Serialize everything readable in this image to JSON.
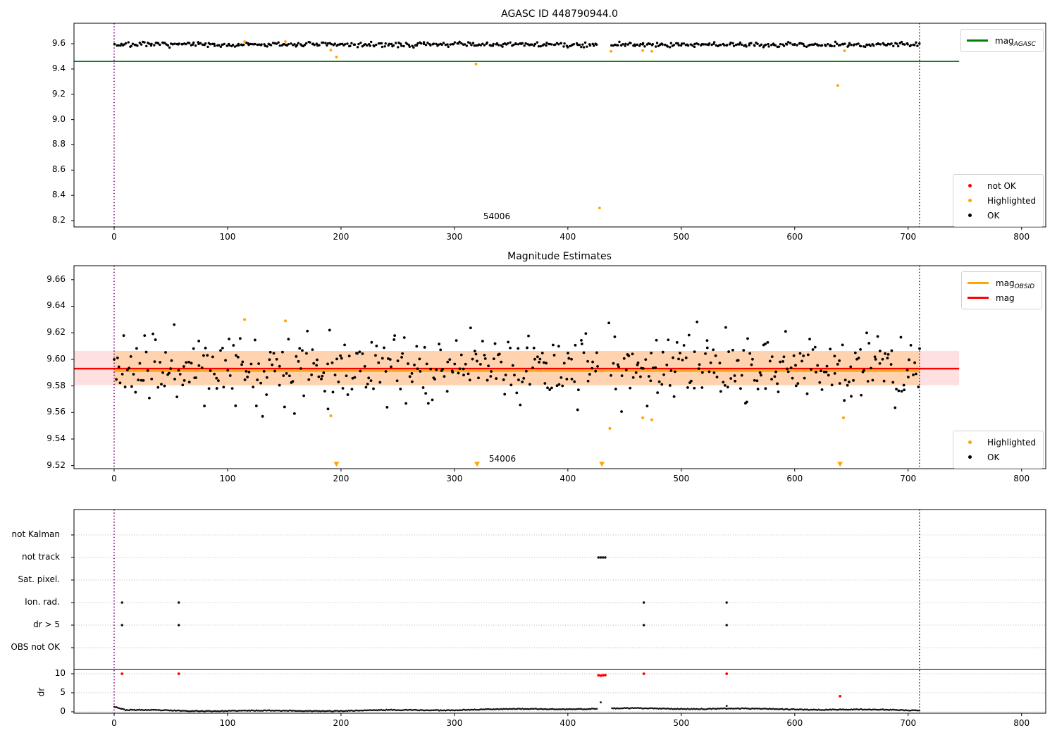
{
  "figure": {
    "background": "#ffffff"
  },
  "colors": {
    "ok": "#000000",
    "not_ok": "#ff0000",
    "highlighted": "#ffa500",
    "mag_agasc_line": "#008000",
    "mag_line": "#ff0000",
    "mag_obsid_line": "#ffa500",
    "obs_window_line": "#800080",
    "grid": "#b5b5b5",
    "mag_band_fill": "rgba(255,0,0,0.12)",
    "obsid_band_fill": "rgba(255,165,0,0.22)"
  },
  "chart_data": [
    {
      "type": "scatter",
      "title": "AGASC ID 448790944.0",
      "xlim": [
        -35.4,
        821.3
      ],
      "ylim": [
        8.15,
        9.762
      ],
      "xticks": [
        0,
        100,
        200,
        300,
        400,
        500,
        600,
        700,
        800
      ],
      "yticks": [
        8.2,
        8.4,
        8.6,
        8.8,
        9.0,
        9.2,
        9.4,
        9.6
      ],
      "mag_agasc_line": {
        "y": 9.46,
        "x_start": -35.4,
        "x_end": 745
      },
      "obs_window_vlines": [
        0,
        710
      ],
      "annotation": {
        "text": "54006",
        "x": 337,
        "y": 8.26
      },
      "ok_scatter": {
        "seed": 7,
        "n": 500,
        "x_start": 1,
        "x_end": 710,
        "gap": [
          427,
          438
        ],
        "y_mean": 9.593,
        "y_spread": 0.009,
        "y_min": 9.556,
        "y_max": 9.632
      },
      "highlighted_points": [
        [
          115,
          9.617
        ],
        [
          151,
          9.617
        ],
        [
          191,
          9.55
        ],
        [
          196,
          9.495
        ],
        [
          319,
          9.44
        ],
        [
          428,
          8.3
        ],
        [
          438,
          9.54
        ],
        [
          466,
          9.546
        ],
        [
          474,
          9.54
        ],
        [
          638,
          9.27
        ],
        [
          644,
          9.544
        ]
      ],
      "not_ok_points": [],
      "legend_lines": [
        {
          "label": "mag",
          "sub": "AGASC"
        }
      ],
      "legend_markers": [
        {
          "label": "not OK"
        },
        {
          "label": "Highlighted"
        },
        {
          "label": "OK"
        }
      ]
    },
    {
      "type": "scatter",
      "title": "Magnitude Estimates",
      "xlim": [
        -35.4,
        821.3
      ],
      "ylim": [
        9.5177,
        9.6705
      ],
      "xticks": [
        0,
        100,
        200,
        300,
        400,
        500,
        600,
        700,
        800
      ],
      "yticks": [
        9.52,
        9.54,
        9.56,
        9.58,
        9.6,
        9.62,
        9.64,
        9.66
      ],
      "mag_line": {
        "y": 9.593,
        "x_start": -35.4,
        "x_end": 745
      },
      "mag_band": {
        "y0": 9.5805,
        "y1": 9.6063,
        "x_start": -35.4,
        "x_end": 745
      },
      "mag_obsid_line": {
        "y": 9.5912,
        "x_start": 0,
        "x_end": 710
      },
      "mag_obsid_band": {
        "y0": 9.5805,
        "y1": 9.6063,
        "x_start": 0,
        "x_end": 710
      },
      "obs_window_vlines": [
        0,
        710
      ],
      "annotation": {
        "text": "54006",
        "x": 342,
        "y": 9.524
      },
      "ok_scatter": {
        "seed": 11,
        "n": 500,
        "x_start": 0,
        "x_end": 710,
        "gap": [
          427,
          436
        ],
        "y_mean": 9.594,
        "y_spread": 0.013,
        "y_min": 9.5455,
        "y_max": 9.631
      },
      "highlighted_points": [
        [
          115,
          9.63
        ],
        [
          151,
          9.629
        ],
        [
          191,
          9.5575
        ],
        [
          437,
          9.548
        ],
        [
          466,
          9.556
        ],
        [
          474,
          9.5545
        ],
        [
          643,
          9.556
        ]
      ],
      "clipped_marker_x": [
        196,
        320,
        430,
        640
      ],
      "clipped_marker_y": 9.521,
      "legend_lines": [
        {
          "label": "mag",
          "sub": "OBSID"
        },
        {
          "label": "mag",
          "sub": ""
        }
      ],
      "legend_markers": [
        {
          "label": "Highlighted"
        },
        {
          "label": "OK"
        }
      ]
    },
    {
      "type": "flags-and-dr",
      "categories": [
        "not Kalman",
        "not track",
        "Sat. pixel.",
        "Ion. rad.",
        "dr > 5",
        "OBS not OK"
      ],
      "dr_ticks": [
        10,
        5,
        0
      ],
      "dr_axis_label": "dr",
      "xticks": [
        0,
        100,
        200,
        300,
        400,
        500,
        600,
        700,
        800
      ],
      "obs_window_vlines": [
        0,
        710
      ],
      "flag_points": {
        "not track": [
          427,
          429,
          431,
          433
        ],
        "Ion. rad.": [
          7,
          57,
          467,
          540
        ],
        "dr > 5": [
          7,
          57,
          467,
          540
        ]
      },
      "red_dr_points": [
        [
          7,
          10
        ],
        [
          57,
          10
        ],
        [
          427,
          9.6
        ],
        [
          429,
          9.5
        ],
        [
          431,
          9.6
        ],
        [
          433,
          9.65
        ],
        [
          467,
          10
        ],
        [
          540,
          10
        ],
        [
          640,
          4.1
        ]
      ],
      "extra_dr_points": [
        [
          429,
          2.5
        ],
        [
          540,
          1.55
        ]
      ],
      "dr_scatter": {
        "seed": 23,
        "n": 640,
        "x_start": 0,
        "x_end": 710,
        "gap": [
          426,
          438
        ]
      }
    }
  ]
}
